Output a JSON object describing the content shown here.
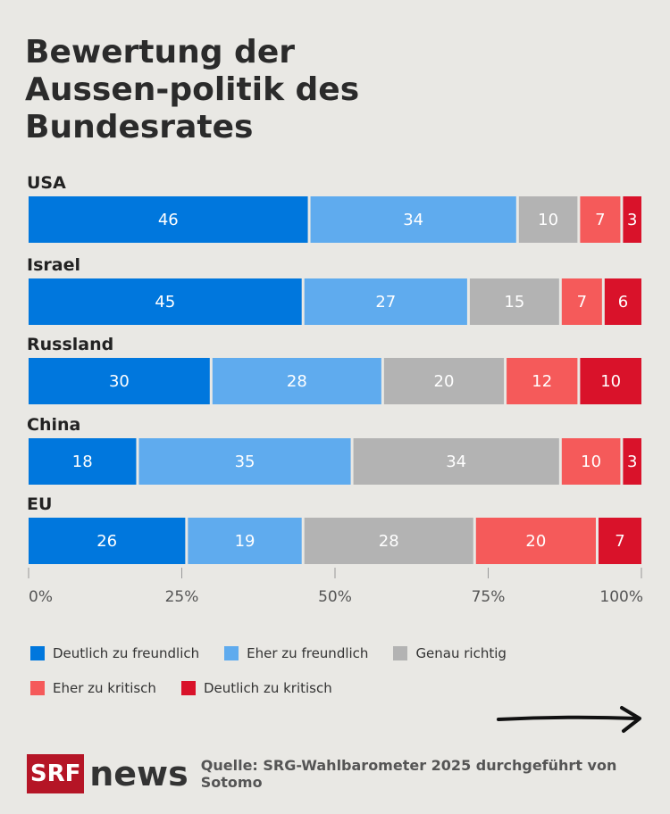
{
  "title": "Bewertung der Aussen-politik des Bundesrates",
  "chart_data": {
    "type": "bar",
    "orientation": "horizontal",
    "stacked": true,
    "categories": [
      "USA",
      "Israel",
      "Russland",
      "China",
      "EU"
    ],
    "series": [
      {
        "name": "Deutlich zu freundlich",
        "color": "#0077dd",
        "values": [
          46,
          45,
          30,
          18,
          26
        ]
      },
      {
        "name": "Eher zu freundlich",
        "color": "#5fabee",
        "values": [
          34,
          27,
          28,
          35,
          19
        ]
      },
      {
        "name": "Genau richtig",
        "color": "#b3b3b3",
        "values": [
          10,
          15,
          20,
          34,
          28
        ]
      },
      {
        "name": "Eher zu kritisch",
        "color": "#f55a5a",
        "values": [
          7,
          7,
          12,
          10,
          20
        ]
      },
      {
        "name": "Deutlich zu kritisch",
        "color": "#d9122a",
        "values": [
          3,
          6,
          10,
          3,
          7
        ]
      }
    ],
    "xlim": [
      0,
      100
    ],
    "x_ticks": [
      "0%",
      "25%",
      "50%",
      "75%",
      "100%"
    ],
    "legend_position": "bottom",
    "grid": false
  },
  "footer": {
    "logo_srf": "SRF",
    "logo_news": "news",
    "source": "Quelle: SRG-Wahlbarometer 2025 durchgeführt von Sotomo"
  }
}
